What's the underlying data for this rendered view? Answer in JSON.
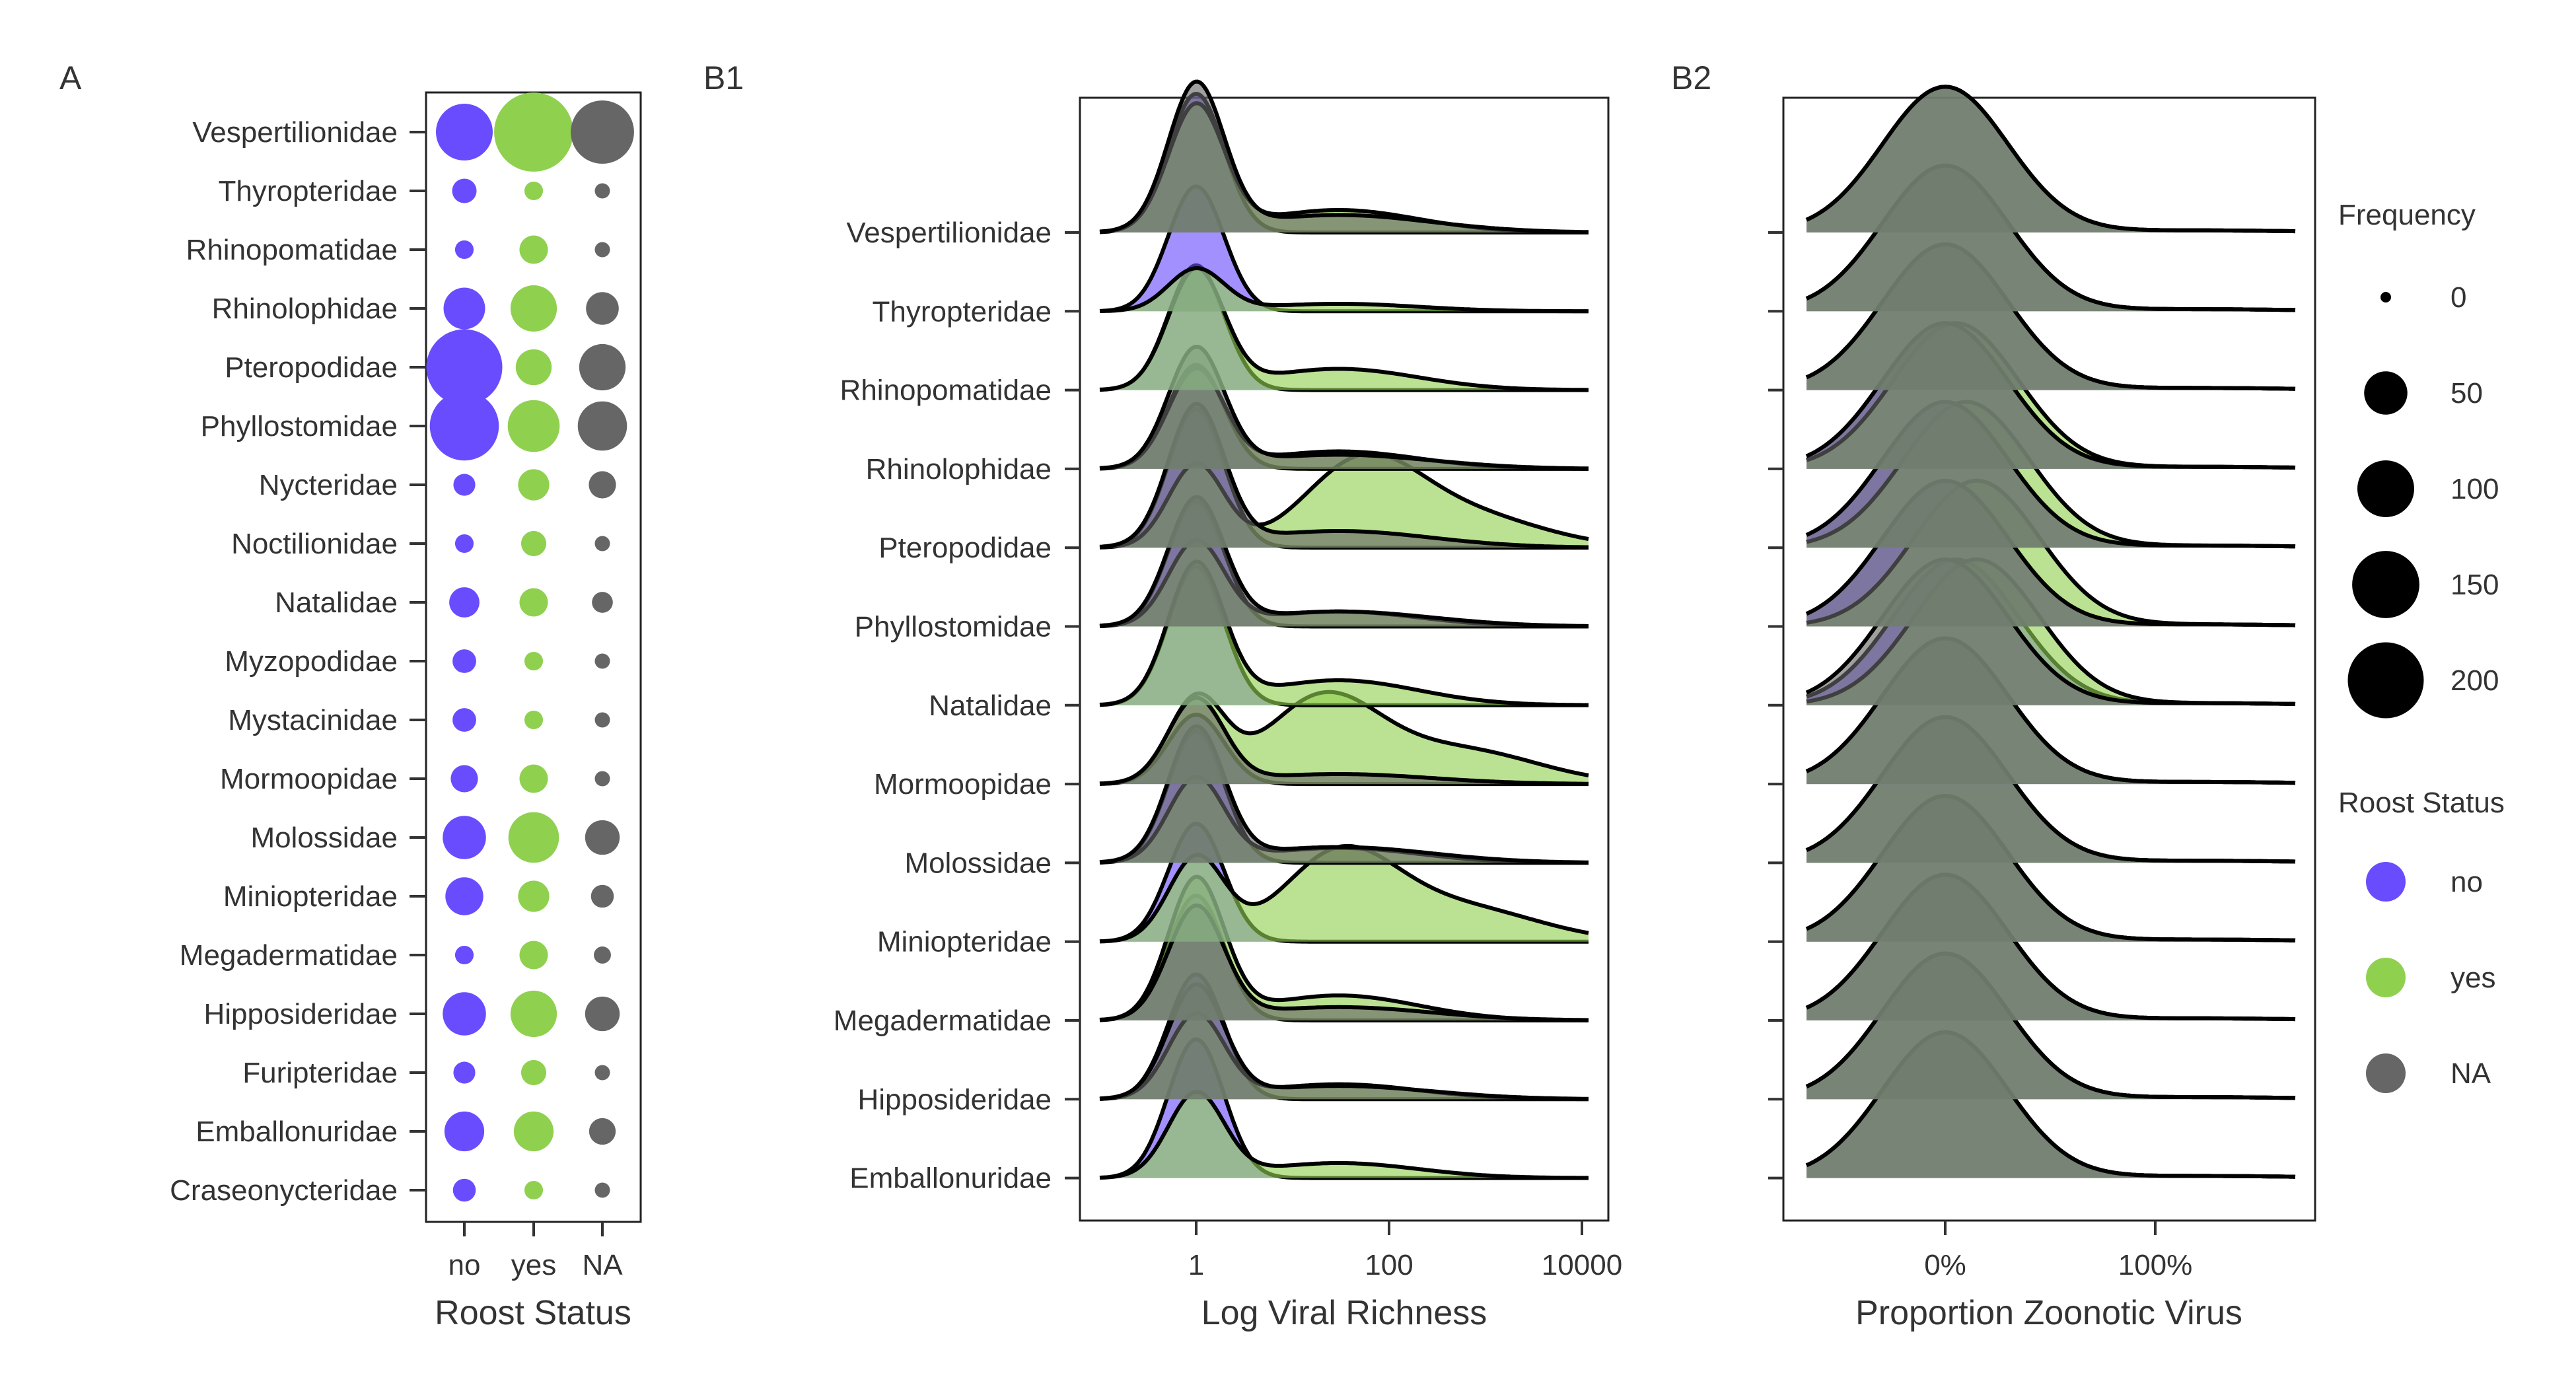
{
  "panels": {
    "a": {
      "tag": "A"
    },
    "b1": {
      "tag": "B1"
    },
    "b2": {
      "tag": "B2"
    }
  },
  "colors": {
    "no": "#6a4cff",
    "yes": "#8fd14f",
    "na": "#666666"
  },
  "chart_data": [
    {
      "type": "scatter",
      "panel": "A",
      "title": "",
      "xlabel": "Roost Status",
      "ylabel": "",
      "categories_x": [
        "no",
        "yes",
        "NA"
      ],
      "categories_y": [
        "Vespertilionidae",
        "Thyropteridae",
        "Rhinopomatidae",
        "Rhinolophidae",
        "Pteropodidae",
        "Phyllostomidae",
        "Nycteridae",
        "Noctilionidae",
        "Natalidae",
        "Myzopodidae",
        "Mystacinidae",
        "Mormoopidae",
        "Molossidae",
        "Miniopteridae",
        "Megadermatidae",
        "Hipposideridae",
        "Furipteridae",
        "Emballonuridae",
        "Craseonycteridae"
      ],
      "series": [
        {
          "name": "no",
          "values": [
            100,
            9,
            3,
            45,
            200,
            160,
            6,
            3,
            18,
            8,
            8,
            13,
            50,
            35,
            3,
            50,
            6,
            40,
            7
          ]
        },
        {
          "name": "yes",
          "values": [
            220,
            3,
            15,
            60,
            30,
            80,
            20,
            10,
            15,
            3,
            3,
            15,
            75,
            20,
            15,
            60,
            10,
            40,
            3
          ]
        },
        {
          "name": "NA",
          "values": [
            130,
            1,
            1,
            23,
            60,
            70,
            13,
            1,
            5,
            1,
            1,
            1,
            27,
            7,
            2,
            27,
            1,
            12,
            1
          ]
        }
      ],
      "size_legend": {
        "title": "Frequency",
        "values": [
          0,
          50,
          100,
          150,
          200
        ]
      }
    },
    {
      "type": "area",
      "panel": "B1",
      "title": "",
      "xlabel": "Log Viral Richness",
      "ylabel": "",
      "xscale": "log10",
      "xlim": [
        0.1,
        12000
      ],
      "x_ticks": [
        "1",
        "100",
        "10000"
      ],
      "families": [
        "Vespertilionidae",
        "Thyropteridae",
        "Rhinopomatidae",
        "Rhinolophidae",
        "Pteropodidae",
        "Phyllostomidae",
        "Natalidae",
        "Mormoopidae",
        "Molossidae",
        "Miniopteridae",
        "Megadermatidae",
        "Hipposideridae",
        "Emballonuridae"
      ],
      "series": [
        {
          "name": "no",
          "density_peaks": [
            [
              1,
              1.0
            ],
            [
              1,
              0.9
            ],
            [
              1,
              0.9
            ],
            [
              1,
              0.75
            ],
            [
              1,
              1.0
            ],
            [
              1,
              0.9
            ],
            [
              1,
              1.0
            ],
            [
              1,
              0.5
            ],
            [
              1,
              0.95
            ],
            [
              1,
              0.85
            ],
            [
              1,
              0.9
            ],
            [
              1,
              0.9
            ],
            [
              1,
              1.0
            ]
          ]
        },
        {
          "name": "yes",
          "density_peaks": [
            [
              1,
              0.9
            ],
            [
              1,
              0.3
            ],
            [
              1,
              0.85
            ],
            [
              1,
              0.7
            ],
            [
              50,
              0.55
            ],
            [
              1,
              0.6
            ],
            [
              1,
              1.0
            ],
            [
              20,
              0.6
            ],
            [
              1,
              0.6
            ],
            [
              30,
              0.6
            ],
            [
              1,
              1.0
            ],
            [
              1,
              0.6
            ],
            [
              1,
              0.6
            ]
          ]
        },
        {
          "name": "NA",
          "density_peaks": [
            [
              1,
              1.05
            ],
            [
              1,
              0.0
            ],
            [
              1,
              0.0
            ],
            [
              1,
              0.85
            ],
            [
              1,
              1.0
            ],
            [
              1,
              0.9
            ],
            [
              1,
              0.0
            ],
            [
              1,
              0.6
            ],
            [
              1,
              0.95
            ],
            [
              1,
              0.0
            ],
            [
              1,
              0.8
            ],
            [
              1,
              0.8
            ],
            [
              1,
              0.0
            ]
          ]
        }
      ]
    },
    {
      "type": "area",
      "panel": "B2",
      "title": "",
      "xlabel": "Proportion Zoonotic Virus",
      "ylabel": "",
      "x_ticks": [
        "0%",
        "100%"
      ],
      "xlim": [
        -0.65,
        1.7
      ],
      "families": [
        "Vespertilionidae",
        "Thyropteridae",
        "Rhinopomatidae",
        "Rhinolophidae",
        "Pteropodidae",
        "Phyllostomidae",
        "Natalidae",
        "Mormoopidae",
        "Molossidae",
        "Miniopteridae",
        "Megadermatidae",
        "Hipposideridae",
        "Emballonuridae"
      ],
      "series": [
        {
          "name": "no",
          "means": [
            0.0,
            0.0,
            0.0,
            0.0,
            0.0,
            0.0,
            0.05,
            0.0,
            0.0,
            0.0,
            0.0,
            0.0,
            0.0
          ]
        },
        {
          "name": "yes",
          "means": [
            0.0,
            0.0,
            0.0,
            0.05,
            0.1,
            0.15,
            0.15,
            0.0,
            0.0,
            0.0,
            0.0,
            0.0,
            0.0
          ]
        },
        {
          "name": "NA",
          "means": [
            0.0,
            0.0,
            0.0,
            0.0,
            0.0,
            0.0,
            0.0,
            0.0,
            0.0,
            0.0,
            0.0,
            0.0,
            0.0
          ]
        }
      ]
    }
  ],
  "legend": {
    "frequency": {
      "title": "Frequency",
      "labels": [
        "0",
        "50",
        "100",
        "150",
        "200"
      ]
    },
    "roost": {
      "title": "Roost Status",
      "labels": [
        "no",
        "yes",
        "NA"
      ]
    }
  }
}
